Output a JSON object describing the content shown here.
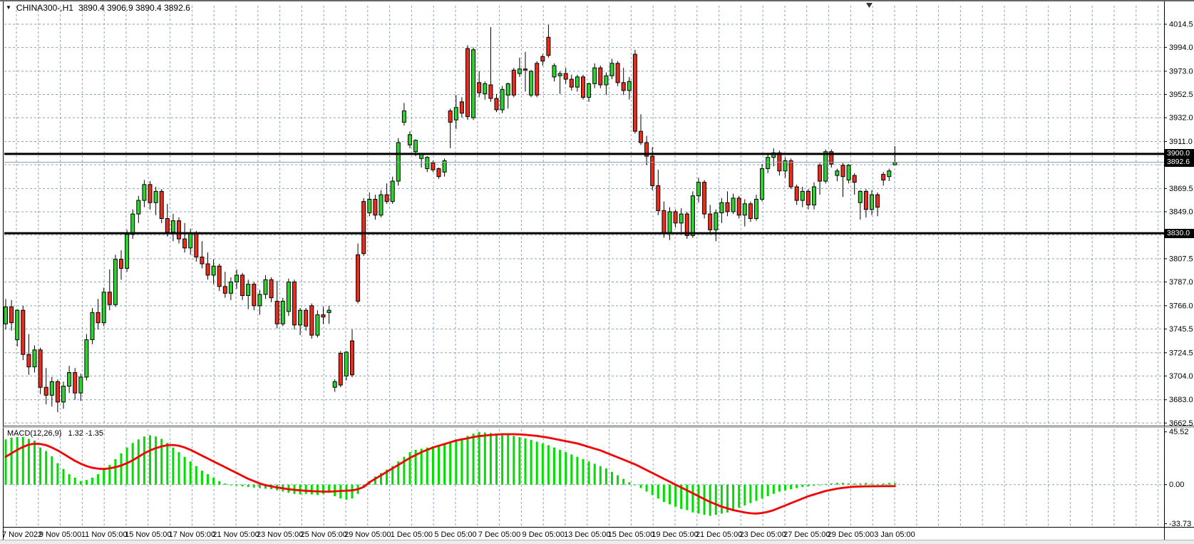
{
  "ui": {
    "title": {
      "instrument": "CHINA300-,H1",
      "ohlc_text": "3890.4 3906.9 3890.4 3892.6",
      "dropdown_icon": "▼"
    },
    "indicator_label": "MACD(12,26,9)",
    "indicator_values": "1.32 -1.35",
    "tags": {
      "hline1": "3900.0",
      "current": "3892.6",
      "hline2": "3830.0"
    }
  },
  "colors": {
    "bull": "#2fd32f",
    "bear": "#ee2c1c",
    "wick": "#000000",
    "macd_hist": "#00dd00",
    "macd_signal": "#f40000",
    "grid": "#8fa2b2",
    "hline": "#000000",
    "current_line": "#8899aa",
    "tag_bg": "#000000",
    "tag_fg": "#ffffff",
    "frame": "#ececec",
    "border": "#000000"
  },
  "chart_data": {
    "type": "candlestick",
    "symbol": "CHINA300-",
    "timeframe": "H1",
    "title": "CHINA300-,H1  3890.4 3906.9 3890.4 3892.6",
    "ohlc_current": {
      "open": 3890.4,
      "high": 3906.9,
      "low": 3890.4,
      "close": 3892.6
    },
    "y_axis": {
      "labels": [
        4014.5,
        3994.0,
        3973.0,
        3952.5,
        3932.0,
        3911.0,
        3869.5,
        3849.0,
        3807.5,
        3787.0,
        3766.0,
        3745.5,
        3724.5,
        3704.0,
        3683.0,
        3662.5
      ],
      "gridline_prices": [
        4014.5,
        3994.0,
        3973.0,
        3952.5,
        3932.0,
        3911.0,
        3890.5,
        3869.5,
        3849.0,
        3828.5,
        3807.5,
        3787.0,
        3766.0,
        3745.5,
        3724.5,
        3704.0,
        3683.0,
        3662.5
      ],
      "range": [
        3662.5,
        4014.5
      ]
    },
    "x_axis": {
      "labels": [
        "7 Nov 2022",
        "9 Nov 05:00",
        "11 Nov 05:00",
        "15 Nov 05:00",
        "17 Nov 05:00",
        "21 Nov 05:00",
        "23 Nov 05:00",
        "25 Nov 05:00",
        "29 Nov 05:00",
        "1 Dec 05:00",
        "5 Dec 05:00",
        "7 Dec 05:00",
        "9 Dec 05:00",
        "13 Dec 05:00",
        "15 Dec 05:00",
        "19 Dec 05:00",
        "21 Dec 05:00",
        "23 Dec 05:00",
        "27 Dec 05:00",
        "29 Dec 05:00",
        "3 Jan 05:00"
      ]
    },
    "horizontal_lines": [
      {
        "price": 3900.0,
        "label": "3900.0"
      },
      {
        "price": 3830.0,
        "label": "3830.0"
      }
    ],
    "current_price": {
      "price": 3892.6,
      "label": "3892.6"
    },
    "candles": [
      [
        3750,
        3772,
        3745,
        3765
      ],
      [
        3765,
        3771,
        3744,
        3751
      ],
      [
        3736,
        3763,
        3730,
        3762
      ],
      [
        3762,
        3766,
        3718,
        3723
      ],
      [
        3723,
        3741,
        3705,
        3712
      ],
      [
        3712,
        3731,
        3707,
        3727
      ],
      [
        3727,
        3729,
        3688,
        3694
      ],
      [
        3694,
        3711,
        3679,
        3687
      ],
      [
        3687,
        3703,
        3677,
        3699
      ],
      [
        3699,
        3701,
        3672,
        3681
      ],
      [
        3681,
        3699,
        3675,
        3695
      ],
      [
        3695,
        3713,
        3689,
        3707
      ],
      [
        3707,
        3711,
        3683,
        3689
      ],
      [
        3689,
        3706,
        3682,
        3703
      ],
      [
        3703,
        3741,
        3700,
        3736
      ],
      [
        3736,
        3764,
        3732,
        3760
      ],
      [
        3760,
        3772,
        3745,
        3751
      ],
      [
        3751,
        3782,
        3748,
        3778
      ],
      [
        3778,
        3798,
        3762,
        3767
      ],
      [
        3767,
        3811,
        3765,
        3807
      ],
      [
        3807,
        3815,
        3789,
        3799
      ],
      [
        3799,
        3833,
        3796,
        3829
      ],
      [
        3829,
        3851,
        3825,
        3847
      ],
      [
        3847,
        3863,
        3839,
        3859
      ],
      [
        3859,
        3877,
        3853,
        3873
      ],
      [
        3873,
        3876,
        3851,
        3857
      ],
      [
        3857,
        3871,
        3846,
        3867
      ],
      [
        3867,
        3869,
        3839,
        3843
      ],
      [
        3843,
        3856,
        3827,
        3831
      ],
      [
        3831,
        3847,
        3823,
        3841
      ],
      [
        3841,
        3844,
        3821,
        3825
      ],
      [
        3825,
        3839,
        3813,
        3817
      ],
      [
        3817,
        3834,
        3811,
        3830
      ],
      [
        3830,
        3832,
        3805,
        3809
      ],
      [
        3809,
        3823,
        3799,
        3803
      ],
      [
        3803,
        3813,
        3789,
        3793
      ],
      [
        3793,
        3807,
        3785,
        3801
      ],
      [
        3801,
        3803,
        3779,
        3783
      ],
      [
        3783,
        3796,
        3773,
        3777
      ],
      [
        3777,
        3791,
        3771,
        3787
      ],
      [
        3787,
        3798,
        3781,
        3793
      ],
      [
        3793,
        3795,
        3771,
        3775
      ],
      [
        3775,
        3789,
        3763,
        3785
      ],
      [
        3785,
        3787,
        3762,
        3766
      ],
      [
        3766,
        3780,
        3758,
        3776
      ],
      [
        3776,
        3793,
        3772,
        3789
      ],
      [
        3789,
        3791,
        3769,
        3773
      ],
      [
        3770,
        3788,
        3746,
        3750
      ],
      [
        3750,
        3773,
        3748,
        3770
      ],
      [
        3761,
        3790,
        3757,
        3787
      ],
      [
        3787,
        3789,
        3745,
        3749
      ],
      [
        3749,
        3764,
        3740,
        3762
      ],
      [
        3762,
        3764,
        3744,
        3748
      ],
      [
        3766,
        3768,
        3737,
        3740
      ],
      [
        3740,
        3762,
        3738,
        3758
      ],
      [
        3758,
        3765,
        3750,
        3756
      ],
      [
        3760,
        3766,
        3750,
        3762
      ],
      [
        3694,
        3701,
        3690,
        3699
      ],
      [
        3724,
        3726,
        3694,
        3696
      ],
      [
        3704,
        3726,
        3700,
        3725
      ],
      [
        3735,
        3745,
        3703,
        3705
      ],
      [
        3811,
        3821,
        3768,
        3770
      ],
      [
        3858,
        3861,
        3810,
        3812
      ],
      [
        3848,
        3866,
        3845,
        3860
      ],
      [
        3860,
        3864,
        3842,
        3846
      ],
      [
        3846,
        3868,
        3844,
        3864
      ],
      [
        3864,
        3874,
        3856,
        3858
      ],
      [
        3858,
        3880,
        3856,
        3876
      ],
      [
        3876,
        3914,
        3872,
        3910
      ],
      [
        3928,
        3945,
        3925,
        3938
      ],
      [
        3908,
        3920,
        3905,
        3917
      ],
      [
        3902,
        3913,
        3898,
        3912
      ],
      [
        3896,
        3901,
        3888,
        3900
      ],
      [
        3887,
        3898,
        3884,
        3897
      ],
      [
        3892,
        3894,
        3884,
        3886
      ],
      [
        3887,
        3888,
        3878,
        3880
      ],
      [
        3884,
        3896,
        3880,
        3894
      ],
      [
        3938,
        3940,
        3905,
        3928
      ],
      [
        3930,
        3952,
        3922,
        3941
      ],
      [
        3946,
        3950,
        3932,
        3936
      ],
      [
        3993,
        3996,
        3930,
        3933
      ],
      [
        3932,
        3994,
        3930,
        3992
      ],
      [
        3963,
        3973,
        3950,
        3954
      ],
      [
        3953,
        3964,
        3948,
        3962
      ],
      [
        3961,
        4012,
        3946,
        3949
      ],
      [
        3949,
        3953,
        3937,
        3939
      ],
      [
        3939,
        3960,
        3936,
        3957
      ],
      [
        3952,
        3963,
        3940,
        3962
      ],
      [
        3974,
        3976,
        3950,
        3952
      ],
      [
        3971,
        3985,
        3968,
        3975
      ],
      [
        3975,
        3990,
        3955,
        3974
      ],
      [
        3952,
        3974,
        3950,
        3973
      ],
      [
        3980,
        3982,
        3950,
        3952
      ],
      [
        3986,
        3988,
        3978,
        3982
      ],
      [
        4003,
        4014,
        3985,
        3987
      ],
      [
        3968,
        3980,
        3964,
        3978
      ],
      [
        3969,
        3973,
        3953,
        3971
      ],
      [
        3971,
        3976,
        3962,
        3966
      ],
      [
        3966,
        3970,
        3956,
        3959
      ],
      [
        3959,
        3970,
        3955,
        3968
      ],
      [
        3968,
        3970,
        3948,
        3950
      ],
      [
        3950,
        3963,
        3946,
        3962
      ],
      [
        3962,
        3980,
        3958,
        3976
      ],
      [
        3976,
        3978,
        3958,
        3961
      ],
      [
        3961,
        3972,
        3952,
        3969
      ],
      [
        3969,
        3984,
        3966,
        3980
      ],
      [
        3980,
        3982,
        3960,
        3963
      ],
      [
        3963,
        3976,
        3952,
        3956
      ],
      [
        3956,
        3968,
        3948,
        3964
      ],
      [
        3988,
        3992,
        3918,
        3920
      ],
      [
        3920,
        3935,
        3908,
        3910
      ],
      [
        3910,
        3916,
        3890,
        3898
      ],
      [
        3898,
        3906,
        3868,
        3872
      ],
      [
        3872,
        3886,
        3846,
        3850
      ],
      [
        3850,
        3858,
        3826,
        3830
      ],
      [
        3830,
        3853,
        3824,
        3849
      ],
      [
        3849,
        3851,
        3835,
        3839
      ],
      [
        3839,
        3852,
        3831,
        3847
      ],
      [
        3847,
        3849,
        3825,
        3828
      ],
      [
        3828,
        3867,
        3826,
        3863
      ],
      [
        3863,
        3879,
        3857,
        3875
      ],
      [
        3875,
        3877,
        3843,
        3847
      ],
      [
        3847,
        3855,
        3829,
        3833
      ],
      [
        3833,
        3851,
        3823,
        3848
      ],
      [
        3848,
        3861,
        3839,
        3857
      ],
      [
        3857,
        3867,
        3845,
        3849
      ],
      [
        3849,
        3865,
        3847,
        3861
      ],
      [
        3861,
        3863,
        3843,
        3846
      ],
      [
        3846,
        3860,
        3836,
        3856
      ],
      [
        3856,
        3858,
        3840,
        3843
      ],
      [
        3843,
        3864,
        3841,
        3860
      ],
      [
        3860,
        3891,
        3858,
        3887
      ],
      [
        3887,
        3901,
        3883,
        3897
      ],
      [
        3897,
        3905,
        3889,
        3901
      ],
      [
        3901,
        3903,
        3881,
        3885
      ],
      [
        3885,
        3897,
        3879,
        3894
      ],
      [
        3894,
        3896,
        3869,
        3871
      ],
      [
        3871,
        3873,
        3855,
        3859
      ],
      [
        3859,
        3871,
        3853,
        3867
      ],
      [
        3867,
        3869,
        3851,
        3855
      ],
      [
        3855,
        3875,
        3851,
        3871
      ],
      [
        3890,
        3892,
        3864,
        3876
      ],
      [
        3876,
        3904,
        3874,
        3902
      ],
      [
        3902,
        3904,
        3888,
        3891
      ],
      [
        3881,
        3887,
        3876,
        3885
      ],
      [
        3890,
        3892,
        3862,
        3880
      ],
      [
        3877,
        3891,
        3874,
        3890
      ],
      [
        3881,
        3883,
        3864,
        3875
      ],
      [
        3857,
        3868,
        3842,
        3867
      ],
      [
        3867,
        3869,
        3844,
        3851
      ],
      [
        3851,
        3868,
        3846,
        3864
      ],
      [
        3864,
        3866,
        3845,
        3853
      ],
      [
        3882,
        3884,
        3872,
        3877
      ],
      [
        3880,
        3887,
        3876,
        3885
      ],
      [
        3890.4,
        3906.9,
        3890.4,
        3892.6
      ]
    ],
    "indicator": {
      "name": "MACD",
      "params": [
        12,
        26,
        9
      ],
      "label": "MACD(12,26,9)",
      "current_values": {
        "macd": 1.32,
        "signal": -1.35
      },
      "axis_labels": [
        45.52,
        0.0,
        -33.73
      ],
      "histogram": [
        39,
        40.5,
        41,
        41,
        39.5,
        38,
        32,
        29,
        24.5,
        18.5,
        13.5,
        9,
        6,
        3,
        4,
        6,
        9,
        13,
        17,
        22,
        27,
        32,
        36,
        39,
        41.5,
        42.5,
        41.5,
        39.5,
        36,
        32,
        28,
        24,
        20,
        16,
        12,
        9,
        6,
        3,
        1,
        0,
        -1,
        -1.5,
        -2,
        -2.5,
        -3,
        -3.5,
        -4,
        -5,
        -6,
        -7,
        -8,
        -8.5,
        -8,
        -8.5,
        -9,
        -8,
        -7,
        -10,
        -12,
        -13,
        -12,
        -8,
        -2,
        3,
        7,
        10,
        13,
        16,
        20,
        24,
        28,
        30,
        31,
        32,
        33,
        34,
        35,
        36,
        38,
        40,
        42,
        44,
        45.5,
        45,
        44.5,
        44,
        43.5,
        43,
        42,
        41,
        40,
        38.5,
        37,
        35.5,
        34,
        32,
        30,
        28,
        26,
        24,
        22,
        20,
        18,
        16,
        14,
        11,
        8,
        5,
        2,
        0,
        -3,
        -6,
        -9,
        -12,
        -15,
        -17,
        -19,
        -21,
        -22,
        -24,
        -25,
        -26,
        -27,
        -26,
        -25,
        -24,
        -22,
        -20,
        -18,
        -16,
        -14,
        -12,
        -10,
        -8,
        -6,
        -5,
        -4,
        -3,
        -2,
        -1.5,
        -1,
        -0.5,
        0.5,
        1,
        1.5,
        1.5,
        1,
        1,
        1,
        1.5,
        1,
        0.5,
        1,
        1.5,
        1.32
      ],
      "signal_line": [
        24,
        27,
        30,
        32.5,
        34.5,
        35.3,
        35,
        34,
        32,
        29.5,
        26.5,
        23.5,
        20.5,
        18,
        16,
        14.5,
        13.8,
        13.5,
        14,
        15,
        16.5,
        18.5,
        21,
        24,
        27,
        29.5,
        31.5,
        33,
        34,
        34.2,
        33.5,
        32,
        30,
        27.5,
        25,
        22.5,
        20,
        17.5,
        15,
        12.5,
        10,
        7.5,
        5,
        3,
        1,
        -0.5,
        -1.5,
        -2.5,
        -3.2,
        -4,
        -4.5,
        -5,
        -5.3,
        -5.6,
        -5.8,
        -6,
        -6,
        -5.8,
        -5.5,
        -5.2,
        -5,
        -4,
        -2,
        2,
        5,
        8,
        11,
        14,
        17,
        20,
        23,
        25.5,
        28,
        30,
        32,
        33.5,
        35,
        36.5,
        38,
        39,
        40,
        41,
        41.8,
        42.3,
        42.8,
        43.2,
        43.5,
        43.5,
        43.5,
        43.3,
        43,
        42.5,
        42,
        41.3,
        40.5,
        39.5,
        38.5,
        37.5,
        36.5,
        35.5,
        34,
        32.5,
        31,
        29.5,
        27.5,
        25.5,
        23.5,
        21.5,
        19.5,
        17.5,
        15,
        12.5,
        10,
        7.5,
        5,
        2.5,
        0,
        -2.5,
        -5,
        -7.5,
        -10,
        -12.5,
        -15,
        -17,
        -19,
        -20.5,
        -22,
        -23,
        -24,
        -24.7,
        -25,
        -24.5,
        -23.5,
        -22,
        -20,
        -18,
        -16,
        -14,
        -12,
        -10,
        -8.5,
        -7,
        -5.5,
        -4.5,
        -3.5,
        -2.8,
        -2.2,
        -1.8,
        -1.6,
        -1.5,
        -1.45,
        -1.4,
        -1.38,
        -1.36,
        -1.35
      ]
    }
  }
}
